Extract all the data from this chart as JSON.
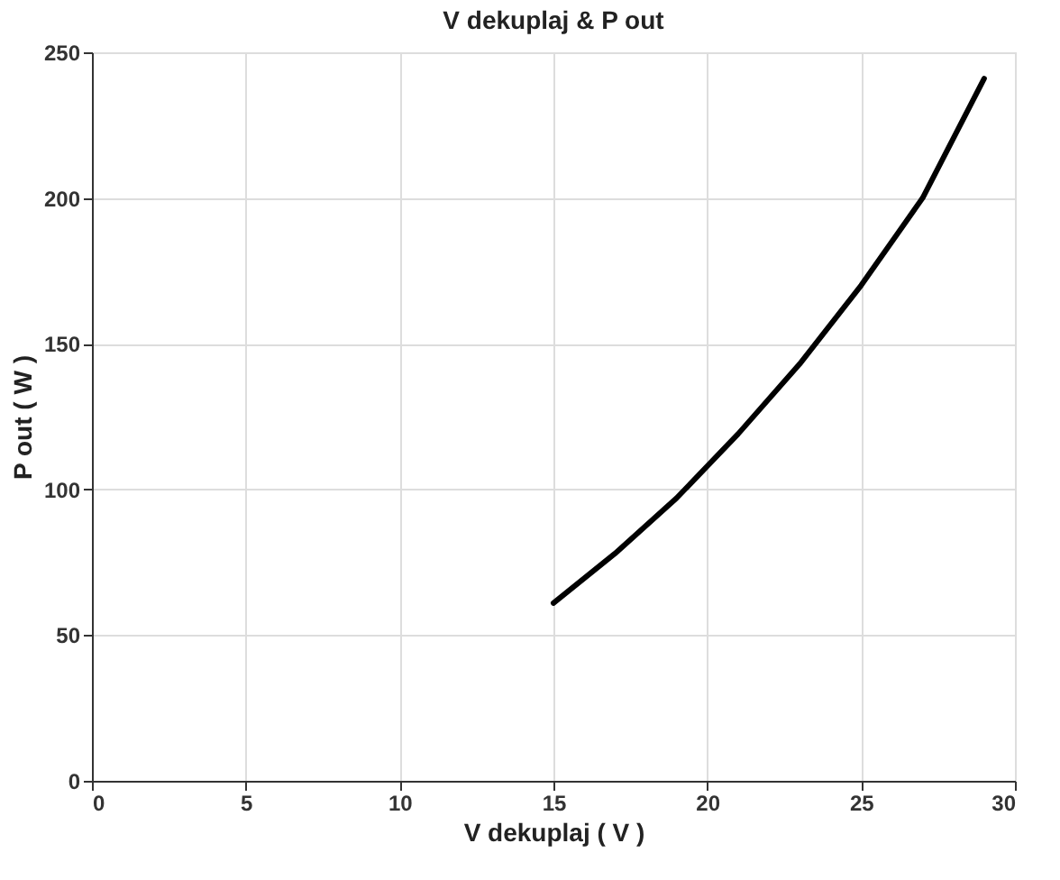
{
  "chart_data": {
    "type": "line",
    "title": "V dekuplaj  &  P out",
    "xlabel": "V dekuplaj  ( V )",
    "ylabel": "P out  ( W )",
    "x": [
      15,
      17,
      19,
      21,
      23,
      25,
      27,
      29
    ],
    "series": [
      {
        "color": "#000000",
        "values": [
          61,
          78,
          97,
          119,
          143,
          170,
          200,
          241
        ]
      }
    ],
    "xlim": [
      0,
      30
    ],
    "xticks": [
      0,
      5,
      10,
      15,
      20,
      25,
      30
    ],
    "ylim": [
      0,
      250
    ],
    "yticks": [
      0,
      50,
      100,
      150,
      200,
      250
    ],
    "grid": true,
    "marker": "none",
    "line_style": "solid"
  }
}
